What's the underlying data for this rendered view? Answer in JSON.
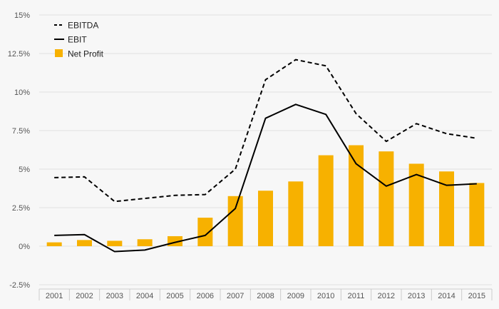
{
  "chart_data": {
    "type": "bar",
    "categories": [
      "2001",
      "2002",
      "2003",
      "2004",
      "2005",
      "2006",
      "2007",
      "2008",
      "2009",
      "2010",
      "2011",
      "2012",
      "2013",
      "2014",
      "2015"
    ],
    "series": [
      {
        "name": "EBITDA",
        "type": "line",
        "style": "dashed",
        "color": "#000000",
        "values": [
          4.45,
          4.5,
          2.9,
          3.1,
          3.3,
          3.35,
          5.0,
          10.8,
          12.1,
          11.7,
          8.6,
          6.8,
          7.95,
          7.3,
          7.0
        ]
      },
      {
        "name": "EBIT",
        "type": "line",
        "style": "solid",
        "color": "#000000",
        "values": [
          0.7,
          0.75,
          -0.35,
          -0.25,
          0.25,
          0.7,
          2.45,
          8.3,
          9.2,
          8.55,
          5.35,
          3.9,
          4.65,
          3.95,
          4.05
        ]
      },
      {
        "name": "Net Profit",
        "type": "bar",
        "color": "#f7b100",
        "values": [
          0.25,
          0.4,
          0.35,
          0.45,
          0.65,
          1.85,
          3.25,
          3.6,
          4.2,
          5.9,
          6.55,
          6.15,
          5.35,
          4.85,
          4.1
        ]
      }
    ],
    "y_ticks": [
      "-2.5%",
      "0%",
      "2.5%",
      "5%",
      "7.5%",
      "10%",
      "12.5%",
      "15%"
    ],
    "ylim": [
      -2.5,
      15
    ],
    "y_unit": "%",
    "grid": true,
    "legend": "top-left",
    "title": "",
    "xlabel": "",
    "ylabel": ""
  }
}
